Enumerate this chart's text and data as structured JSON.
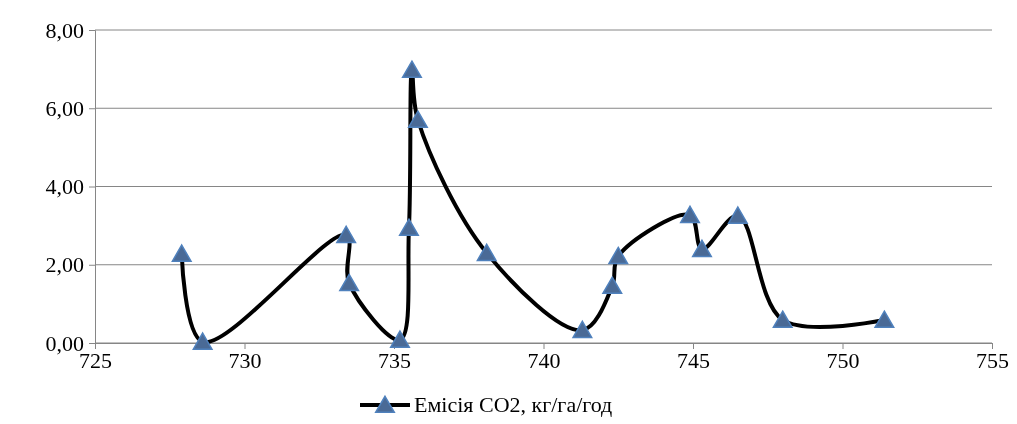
{
  "chart_data": {
    "type": "line",
    "xlim": [
      725,
      755
    ],
    "xticks": [
      725,
      730,
      735,
      740,
      745,
      750,
      755
    ],
    "ylim": [
      0,
      8
    ],
    "yticks": [
      {
        "value": 0,
        "label": "0,00"
      },
      {
        "value": 2,
        "label": "2,00"
      },
      {
        "value": 4,
        "label": "4,00"
      },
      {
        "value": 6,
        "label": "6,00"
      },
      {
        "value": 8,
        "label": "8,00"
      }
    ],
    "grid": "y",
    "legend": "bottom",
    "marker": "triangle",
    "line_style": "solid",
    "series": [
      {
        "name": "Емісія CO2, кг/га/год",
        "color": "#000000",
        "x": [
          727.9,
          728.6,
          733.4,
          733.5,
          735.2,
          735.5,
          735.6,
          735.8,
          738.1,
          741.3,
          742.3,
          742.5,
          744.9,
          745.3,
          746.5,
          748.0,
          751.4
        ],
        "values": [
          2.28,
          0.03,
          2.76,
          1.53,
          0.08,
          2.94,
          6.98,
          5.7,
          2.3,
          0.33,
          1.46,
          2.22,
          3.27,
          2.4,
          3.25,
          0.59,
          0.59
        ]
      }
    ]
  }
}
